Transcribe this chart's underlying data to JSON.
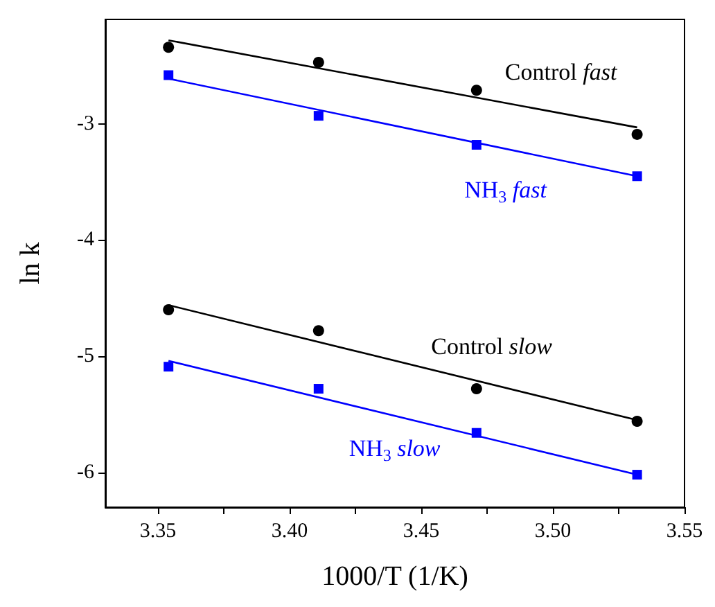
{
  "chart_data": {
    "type": "scatter",
    "xlabel": "1000/T (1/K)",
    "ylabel": "ln k",
    "xlim": [
      3.33,
      3.55
    ],
    "ylim": [
      -6.3,
      -2.1
    ],
    "xticks": [
      3.35,
      {
        "value": 3.375,
        "label": null
      },
      "3.40",
      {
        "value": 3.425,
        "label": null
      },
      3.45,
      {
        "value": 3.475,
        "label": null
      },
      "3.50",
      {
        "value": 3.525,
        "label": null
      },
      3.55
    ],
    "yticks": [
      -6,
      -5,
      -4,
      -3
    ],
    "grid": false,
    "series": [
      {
        "name": "Control fast",
        "color": "#000000",
        "marker": "circle",
        "x": [
          3.354,
          3.411,
          3.471,
          3.532
        ],
        "values": [
          -2.34,
          -2.47,
          -2.71,
          -3.09
        ]
      },
      {
        "name": "NH$_{3}$ fast",
        "color": "#0000ff",
        "marker": "square",
        "x": [
          3.354,
          3.411,
          3.471,
          3.532
        ],
        "values": [
          -2.58,
          -2.93,
          -3.18,
          -3.45
        ]
      },
      {
        "name": "Control slow",
        "color": "#000000",
        "marker": "circle",
        "x": [
          3.354,
          3.411,
          3.471,
          3.532
        ],
        "values": [
          -4.6,
          -4.78,
          -5.28,
          -5.56
        ]
      },
      {
        "name": "NH$_{3}$ slow",
        "color": "#0000ff",
        "marker": "square",
        "x": [
          3.354,
          3.411,
          3.471,
          3.532
        ],
        "values": [
          -5.09,
          -5.28,
          -5.66,
          -6.02
        ]
      },
      {
        "type": "line",
        "marker": "none",
        "color": "#000000",
        "x": [
          3.354,
          3.532
        ],
        "values": [
          -2.28,
          -3.03
        ]
      },
      {
        "type": "line",
        "marker": "none",
        "color": "#0000ff",
        "x": [
          3.354,
          3.532
        ],
        "values": [
          -2.61,
          -3.45
        ]
      },
      {
        "type": "line",
        "marker": "none",
        "color": "#000000",
        "x": [
          3.354,
          3.532
        ],
        "values": [
          -4.56,
          -5.55
        ]
      },
      {
        "type": "line",
        "marker": "none",
        "color": "#0000ff",
        "x": [
          3.354,
          3.532
        ],
        "values": [
          -5.04,
          -6.02
        ]
      }
    ]
  }
}
